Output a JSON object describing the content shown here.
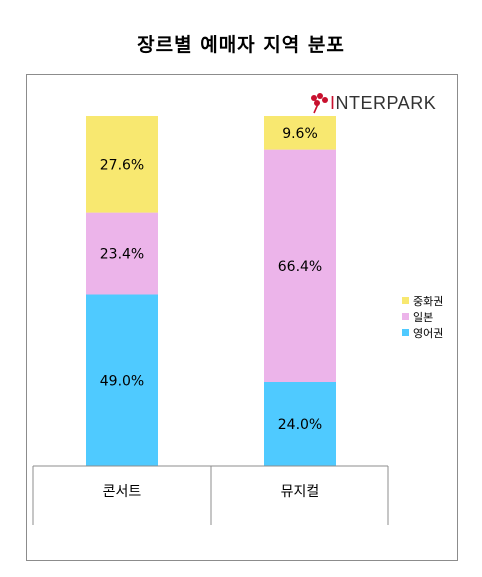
{
  "title": "장르별 예매자 지역 분포",
  "logo": {
    "text_prefix": "I",
    "text_rest": "NTERPARK",
    "icon": "interpark-flower-icon",
    "color": "#c8102e"
  },
  "chart_data": {
    "type": "bar",
    "stacked": true,
    "categories": [
      "콘서트",
      "뮤지컬"
    ],
    "series": [
      {
        "name": "영어권",
        "values": [
          49.0,
          24.0
        ],
        "labels": [
          "49.0%",
          "24.0%"
        ],
        "color": "#4fcaff"
      },
      {
        "name": "일본",
        "values": [
          23.4,
          66.4
        ],
        "labels": [
          "23.4%",
          "66.4%"
        ],
        "color": "#ecb4ea"
      },
      {
        "name": "중화권",
        "values": [
          27.6,
          9.6
        ],
        "labels": [
          "27.6%",
          "9.6%"
        ],
        "color": "#f8e870"
      }
    ],
    "legend_order": [
      "중화권",
      "일본",
      "영어권"
    ],
    "legend_position": "right",
    "ylim": [
      0,
      100
    ],
    "grid": false
  }
}
